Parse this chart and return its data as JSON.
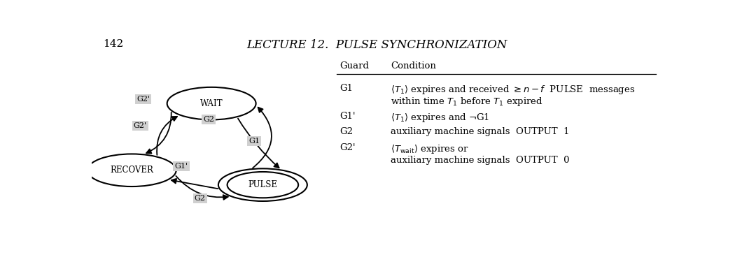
{
  "page_number": "142",
  "header": "LECTURE 12.  PULSE SYNCHRONIZATION",
  "nodes": {
    "WAIT": {
      "double": false
    },
    "RECOVER": {
      "double": false
    },
    "PULSE": {
      "double": true
    }
  },
  "table": {
    "header_guard": "Guard",
    "header_condition": "Condition",
    "rows": [
      {
        "guard": "G1",
        "condition_lines": [
          "$\\langle T_1 \\rangle$ expires and received $\\geq n - f$  PULSE  messages",
          "within time $T_1$ before $T_1$ expired"
        ]
      },
      {
        "guard": "G1'",
        "condition_lines": [
          "$\\langle T_1 \\rangle$ expires and $\\neg$G1"
        ]
      },
      {
        "guard": "G2",
        "condition_lines": [
          "auxiliary machine signals  OUTPUT  1"
        ]
      },
      {
        "guard": "G2'",
        "condition_lines": [
          "$\\langle T_\\mathrm{wait} \\rangle$ expires or",
          "auxiliary machine signals  OUTPUT  0"
        ]
      }
    ]
  },
  "bg_color": "#ffffff",
  "label_fill": "#d0d0d0",
  "text_color": "#000000",
  "npos": {
    "WAIT": [
      0.21,
      0.66
    ],
    "RECOVER": [
      0.07,
      0.34
    ],
    "PULSE": [
      0.3,
      0.27
    ]
  },
  "node_r": 0.078
}
